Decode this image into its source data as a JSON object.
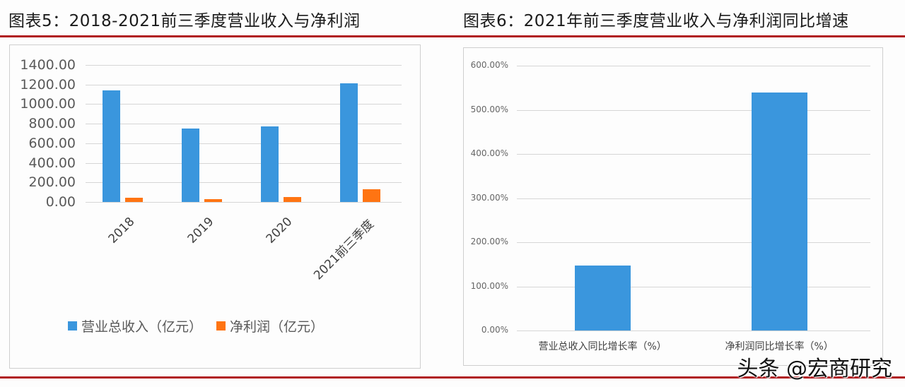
{
  "left_chart": {
    "title": "图表5：2018-2021前三季度营业收入与净利润",
    "y_ticks": [
      "1400.00",
      "1200.00",
      "1000.00",
      "800.00",
      "600.00",
      "400.00",
      "200.00",
      "0.00"
    ],
    "categories": [
      "2018",
      "2019",
      "2020",
      "2021前三季度"
    ],
    "legend": [
      {
        "label": "营业总收入（亿元）",
        "color": "#3a96dd"
      },
      {
        "label": "净利润（亿元）",
        "color": "#ff7412"
      }
    ]
  },
  "right_chart": {
    "title": "图表6：2021年前三季度营业收入与净利润同比增速",
    "y_ticks": [
      "600.00%",
      "500.00%",
      "400.00%",
      "300.00%",
      "200.00%",
      "100.00%",
      "0.00%"
    ],
    "categories": [
      "营业总收入同比增长率（%）",
      "净利润同比增长率（%）"
    ]
  },
  "watermark": "头条 @宏商研究",
  "colors": {
    "blue": "#3a96dd",
    "orange": "#ff7412",
    "rule": "#b01a1f",
    "grid": "#d6d6d6"
  },
  "chart_data": [
    {
      "type": "bar",
      "title": "图表5：2018-2021前三季度营业收入与净利润",
      "categories": [
        "2018",
        "2019",
        "2020",
        "2021前三季度"
      ],
      "series": [
        {
          "name": "营业总收入（亿元）",
          "values": [
            1140,
            750,
            772,
            1212
          ]
        },
        {
          "name": "净利润（亿元）",
          "values": [
            43,
            30,
            50,
            130
          ]
        }
      ],
      "xlabel": "",
      "ylabel": "",
      "ylim": [
        0,
        1400
      ],
      "yticks": [
        0,
        200,
        400,
        600,
        800,
        1000,
        1200,
        1400
      ],
      "grid": true,
      "legend_position": "bottom"
    },
    {
      "type": "bar",
      "title": "图表6：2021年前三季度营业收入与净利润同比增速",
      "categories": [
        "营业总收入同比增长率（%）",
        "净利润同比增长率（%）"
      ],
      "values": [
        147,
        539
      ],
      "value_unit": "%",
      "xlabel": "",
      "ylabel": "",
      "ylim": [
        0,
        600
      ],
      "yticks": [
        0,
        100,
        200,
        300,
        400,
        500,
        600
      ],
      "grid": true,
      "legend_position": "none"
    }
  ]
}
